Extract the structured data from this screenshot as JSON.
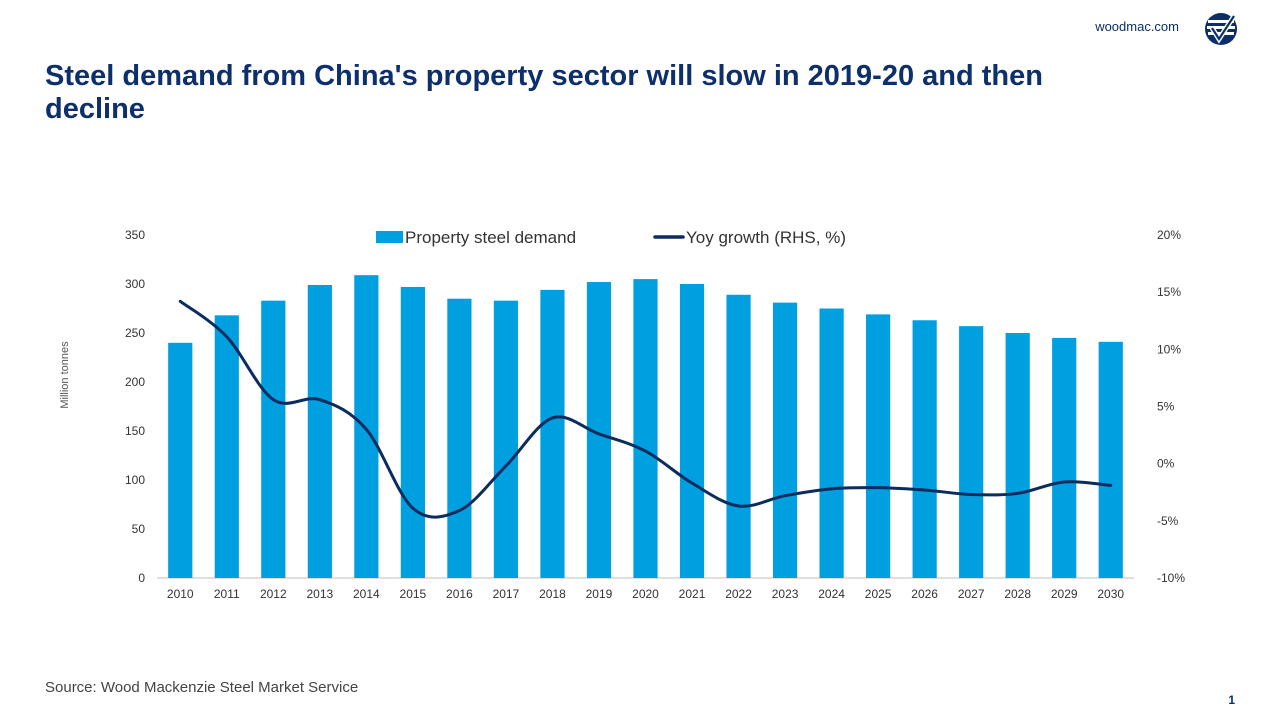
{
  "header": {
    "site_url": "woodmac.com",
    "logo_icon": "woodmac-logo-icon"
  },
  "title": "Steel demand from China's property sector will slow in 2019-20 and then decline",
  "footer": {
    "source": "Source: Wood Mackenzie Steel Market Service",
    "page_number": "1"
  },
  "colors": {
    "bar": "#009fdf",
    "line": "#0b2c5e",
    "title": "#0d2f6c",
    "axis_text": "#333333"
  },
  "chart_data": {
    "type": "bar",
    "categories": [
      "2010",
      "2011",
      "2012",
      "2013",
      "2014",
      "2015",
      "2016",
      "2017",
      "2018",
      "2019",
      "2020",
      "2021",
      "2022",
      "2023",
      "2024",
      "2025",
      "2026",
      "2027",
      "2028",
      "2029",
      "2030"
    ],
    "series": [
      {
        "name": "Property steel demand",
        "type": "bar",
        "axis": "left",
        "values": [
          240,
          268,
          283,
          299,
          309,
          297,
          285,
          283,
          294,
          302,
          305,
          300,
          289,
          281,
          275,
          269,
          263,
          257,
          250,
          245,
          241
        ]
      },
      {
        "name": "Yoy growth (RHS, %)",
        "type": "line",
        "axis": "right",
        "values": [
          14.2,
          11.1,
          5.6,
          5.6,
          3.0,
          -3.9,
          -4.1,
          -0.2,
          4.0,
          2.6,
          1.1,
          -1.7,
          -3.7,
          -2.8,
          -2.2,
          -2.1,
          -2.3,
          -2.7,
          -2.6,
          -1.6,
          -1.9
        ]
      }
    ],
    "ylabel": "Million tonnes",
    "ylim": [
      0,
      350
    ],
    "yticks": [
      "0",
      "50",
      "100",
      "150",
      "200",
      "250",
      "300",
      "350"
    ],
    "y2lim": [
      -10,
      20
    ],
    "y2ticks": [
      "-10%",
      "-5%",
      "0%",
      "5%",
      "10%",
      "15%",
      "20%"
    ],
    "legend": "top-center",
    "grid": false
  }
}
